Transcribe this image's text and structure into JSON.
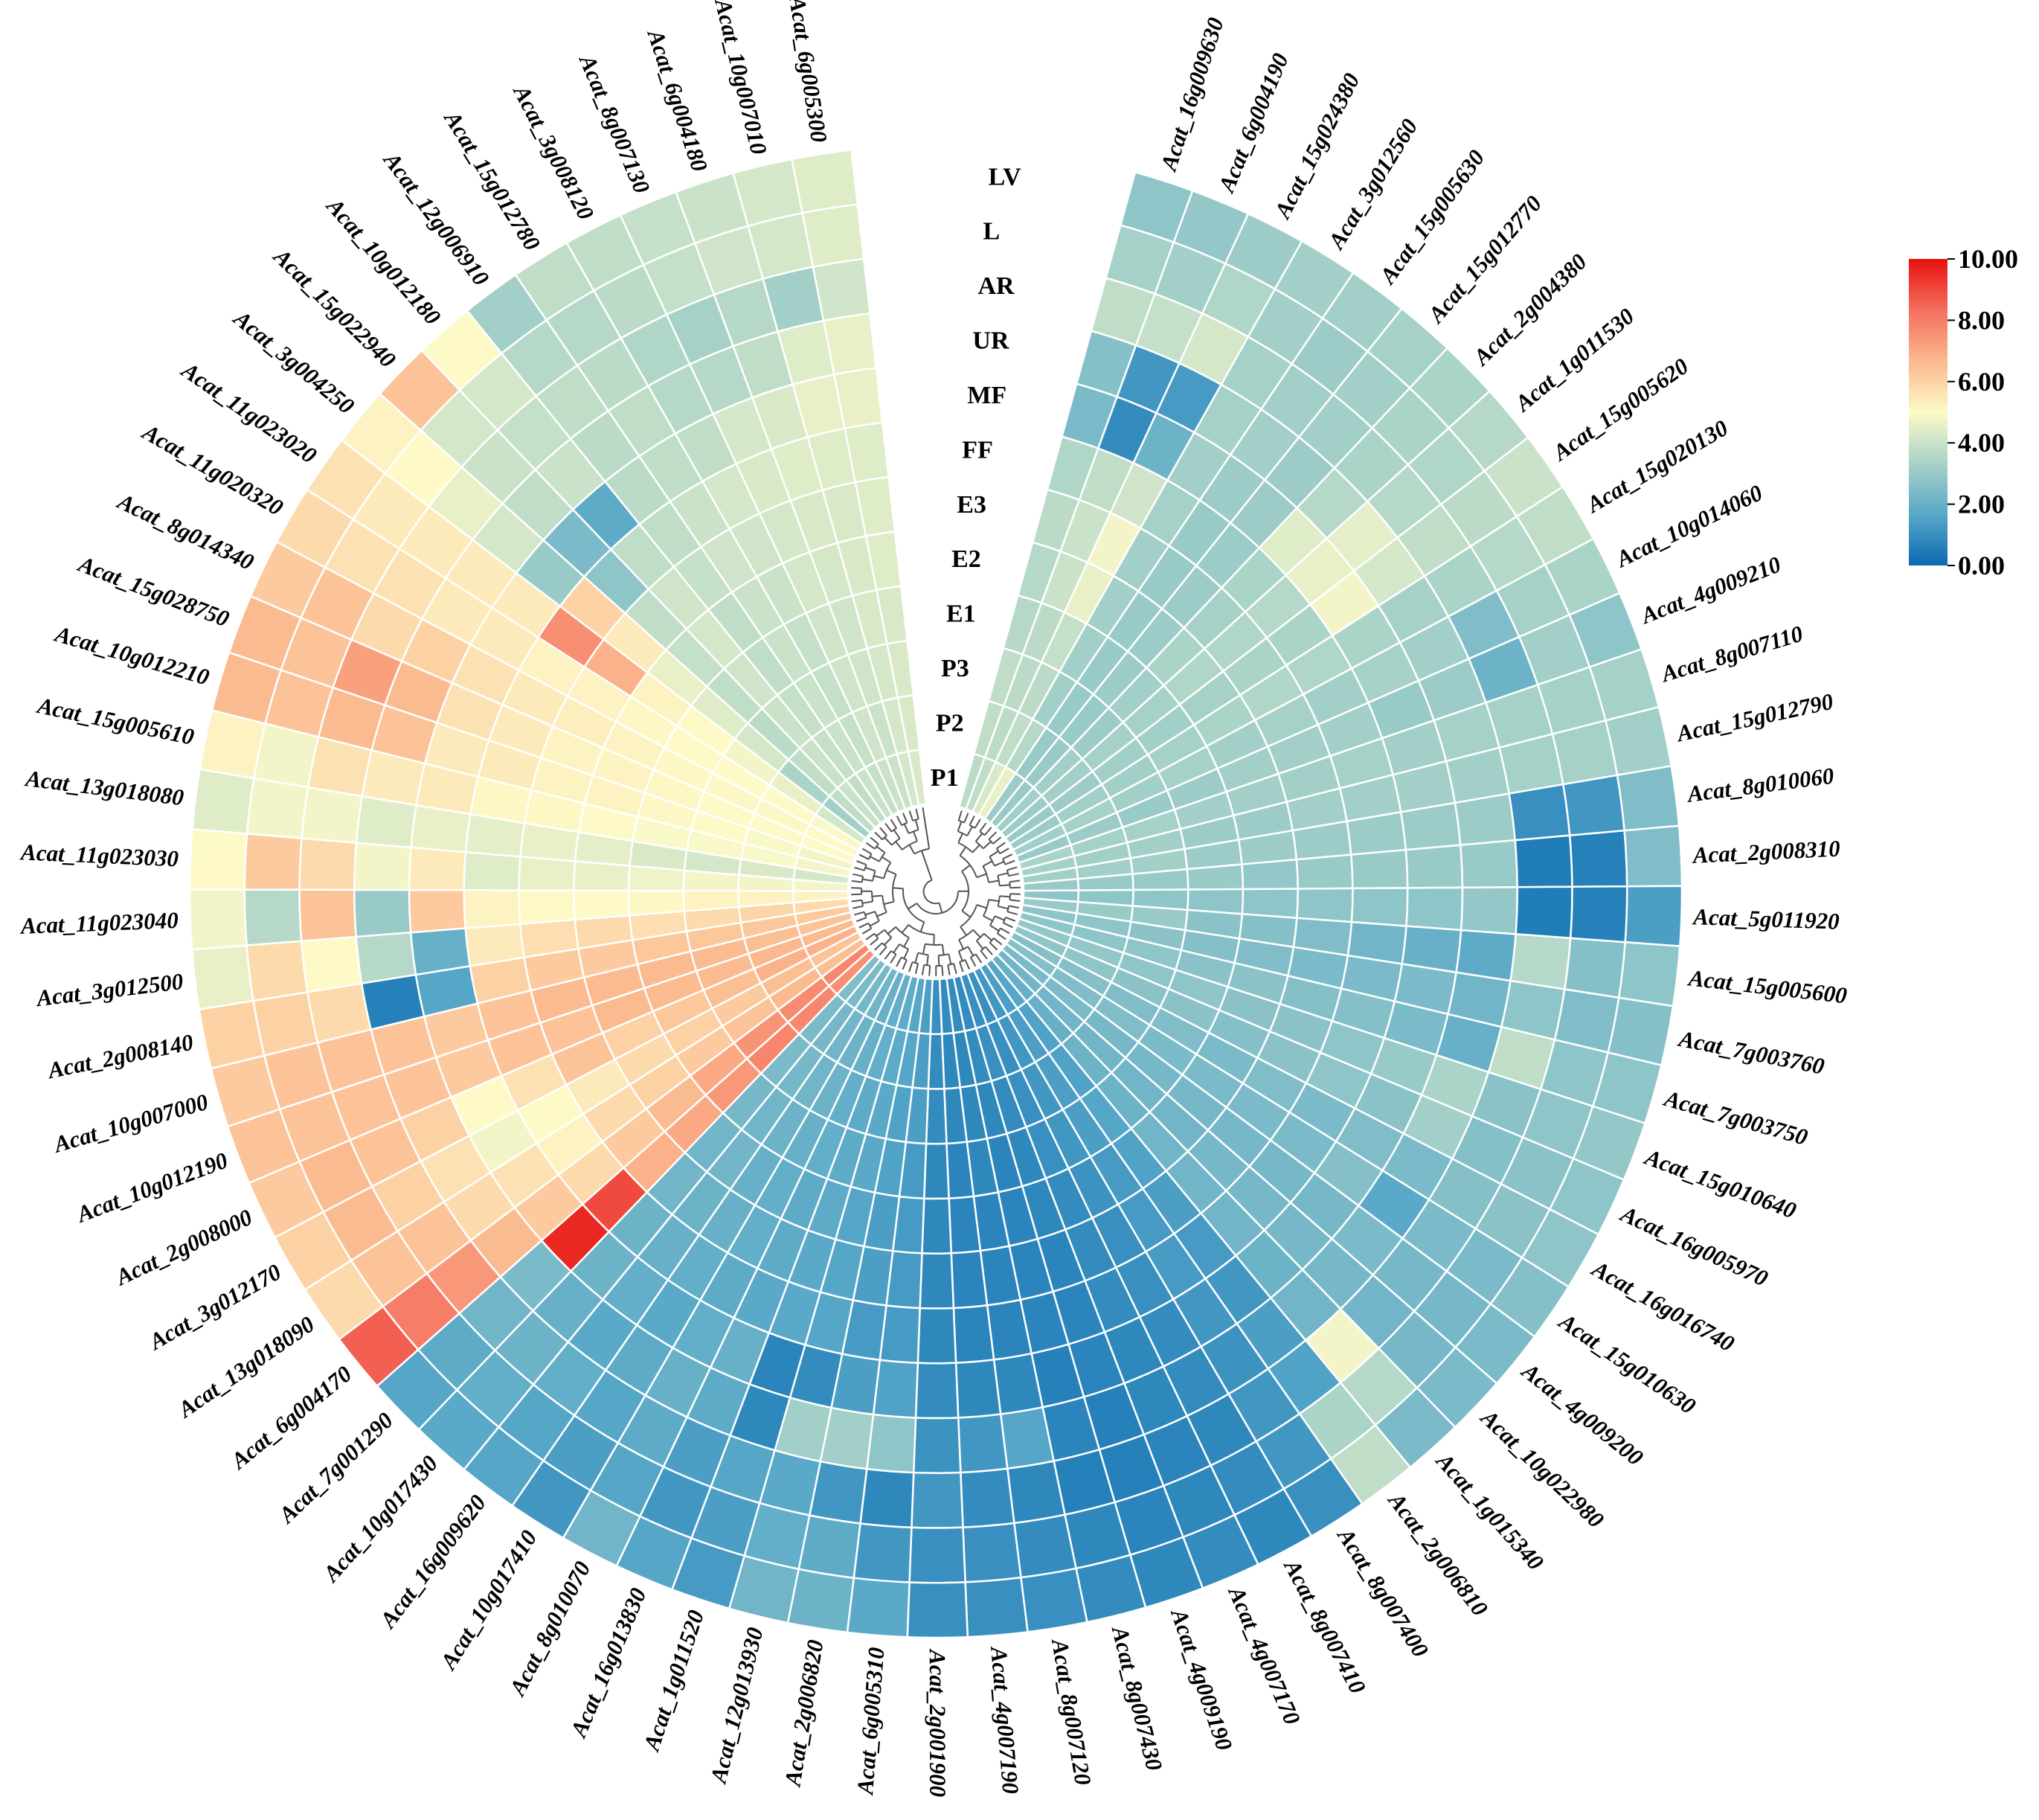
{
  "chart_data": {
    "type": "heatmap",
    "layout": "circular",
    "title": "",
    "rows": [
      "P1",
      "P2",
      "P3",
      "E1",
      "E2",
      "E3",
      "FF",
      "MF",
      "UR",
      "AR",
      "L",
      "LV"
    ],
    "genes": [
      {
        "name": "Acat_16g009630",
        "values": [
          3.7,
          3.8,
          3.8,
          3.6,
          3.6,
          3.7,
          3.5,
          2.4,
          2.6,
          3.8,
          3.3,
          2.8
        ]
      },
      {
        "name": "Acat_6g004190",
        "values": [
          3.8,
          3.7,
          3.7,
          3.7,
          4.0,
          4.0,
          3.8,
          0.9,
          1.2,
          3.9,
          3.2,
          2.9
        ]
      },
      {
        "name": "Acat_15g024380",
        "values": [
          4.3,
          3.8,
          3.7,
          3.9,
          4.6,
          4.8,
          4.1,
          2.1,
          1.3,
          4.2,
          3.5,
          3.1
        ]
      },
      {
        "name": "Acat_3g012560",
        "values": [
          4.6,
          3.6,
          3.2,
          3.2,
          3.2,
          3.2,
          3.3,
          3.2,
          3.3,
          3.3,
          3.2,
          3.2
        ]
      },
      {
        "name": "Acat_15g005630",
        "values": [
          3.1,
          3.0,
          3.0,
          3.0,
          3.0,
          3.0,
          3.0,
          3.1,
          3.2,
          3.2,
          3.1,
          3.2
        ]
      },
      {
        "name": "Acat_15g012770",
        "values": [
          3.0,
          3.0,
          3.0,
          3.1,
          3.1,
          3.1,
          3.1,
          3.1,
          3.1,
          3.2,
          3.2,
          3.3
        ]
      },
      {
        "name": "Acat_2g004380",
        "values": [
          3.2,
          3.2,
          3.1,
          3.2,
          3.4,
          3.3,
          3.4,
          4.4,
          3.6,
          3.4,
          3.4,
          3.4
        ]
      },
      {
        "name": "Acat_1g011530",
        "values": [
          3.1,
          3.2,
          3.3,
          3.3,
          3.5,
          3.5,
          3.6,
          4.6,
          4.5,
          3.6,
          3.5,
          3.6
        ]
      },
      {
        "name": "Acat_15g005620",
        "values": [
          3.0,
          3.1,
          3.2,
          3.2,
          3.3,
          3.4,
          3.4,
          4.8,
          4.2,
          3.8,
          3.7,
          4.0
        ]
      },
      {
        "name": "Acat_15g020130",
        "values": [
          3.1,
          3.2,
          3.2,
          3.3,
          3.4,
          3.5,
          3.5,
          3.4,
          3.3,
          3.4,
          3.6,
          3.8
        ]
      },
      {
        "name": "Acat_10g014060",
        "values": [
          3.2,
          3.3,
          3.2,
          3.3,
          3.2,
          3.3,
          3.2,
          3.3,
          3.2,
          2.5,
          3.3,
          3.4
        ]
      },
      {
        "name": "Acat_4g009210",
        "values": [
          3.0,
          3.1,
          3.0,
          3.1,
          3.2,
          3.2,
          3.2,
          3.0,
          3.1,
          2.1,
          3.2,
          2.8
        ]
      },
      {
        "name": "Acat_8g007110",
        "values": [
          3.4,
          3.3,
          3.3,
          3.2,
          3.2,
          3.2,
          3.3,
          3.2,
          3.3,
          3.3,
          3.3,
          3.3
        ]
      },
      {
        "name": "Acat_15g012790",
        "values": [
          3.3,
          3.2,
          3.2,
          3.1,
          3.1,
          3.2,
          3.2,
          3.2,
          3.2,
          3.3,
          3.3,
          3.2
        ]
      },
      {
        "name": "Acat_8g010060",
        "values": [
          3.2,
          3.2,
          3.2,
          3.1,
          3.1,
          3.1,
          3.1,
          3.1,
          3.1,
          1.0,
          1.2,
          2.5
        ]
      },
      {
        "name": "Acat_2g008310",
        "values": [
          3.0,
          3.0,
          3.0,
          3.0,
          2.9,
          3.0,
          3.0,
          3.0,
          3.0,
          0.5,
          0.6,
          2.5
        ]
      },
      {
        "name": "Acat_5g011920",
        "values": [
          2.8,
          2.8,
          2.8,
          2.8,
          2.8,
          2.8,
          2.8,
          2.8,
          2.9,
          0.5,
          0.6,
          1.4
        ]
      },
      {
        "name": "Acat_15g005600",
        "values": [
          3.0,
          3.0,
          3.0,
          2.7,
          2.6,
          2.5,
          2.2,
          2.0,
          1.8,
          3.6,
          2.6,
          2.8
        ]
      },
      {
        "name": "Acat_7g003760",
        "values": [
          2.8,
          2.8,
          2.7,
          2.6,
          2.5,
          2.4,
          2.4,
          2.4,
          2.2,
          2.8,
          2.5,
          2.6
        ]
      },
      {
        "name": "Acat_7g003750",
        "values": [
          2.8,
          2.8,
          2.8,
          2.7,
          2.7,
          2.6,
          2.6,
          2.4,
          2.0,
          3.8,
          2.8,
          2.8
        ]
      },
      {
        "name": "Acat_15g010640",
        "values": [
          2.9,
          2.9,
          2.8,
          2.8,
          2.7,
          2.7,
          2.8,
          3.0,
          3.4,
          2.7,
          2.8,
          2.9
        ]
      },
      {
        "name": "Acat_16g005970",
        "values": [
          2.8,
          2.8,
          2.7,
          2.7,
          2.6,
          2.7,
          2.8,
          2.7,
          3.2,
          2.6,
          2.7,
          2.8
        ]
      },
      {
        "name": "Acat_16g016740",
        "values": [
          2.6,
          2.6,
          2.5,
          2.5,
          2.4,
          2.5,
          2.4,
          2.5,
          2.4,
          2.6,
          2.7,
          2.8
        ]
      },
      {
        "name": "Acat_15g010630",
        "values": [
          2.6,
          2.5,
          2.5,
          2.4,
          2.4,
          2.4,
          2.4,
          2.6,
          1.7,
          2.4,
          2.4,
          2.6
        ]
      },
      {
        "name": "Acat_4g009200",
        "values": [
          2.4,
          2.4,
          2.3,
          2.3,
          2.3,
          2.3,
          2.3,
          2.3,
          2.4,
          2.3,
          2.3,
          2.4
        ]
      },
      {
        "name": "Acat_10g022980",
        "values": [
          2.2,
          2.2,
          2.2,
          2.2,
          2.2,
          2.3,
          2.3,
          2.3,
          2.3,
          2.2,
          2.3,
          2.4
        ]
      },
      {
        "name": "Acat_1g015340",
        "values": [
          2.0,
          2.0,
          2.1,
          2.1,
          2.2,
          2.2,
          2.2,
          2.1,
          2.2,
          4.8,
          3.6,
          2.4
        ]
      },
      {
        "name": "Acat_2g006810",
        "values": [
          1.6,
          1.5,
          1.5,
          1.6,
          1.5,
          1.4,
          1.3,
          1.2,
          1.4,
          1.5,
          3.4,
          3.8
        ]
      },
      {
        "name": "Acat_8g007400",
        "values": [
          1.4,
          1.4,
          1.4,
          1.4,
          1.3,
          1.3,
          1.3,
          1.2,
          1.1,
          1.2,
          1.2,
          1.0
        ]
      },
      {
        "name": "Acat_8g007410",
        "values": [
          1.2,
          1.2,
          1.2,
          1.2,
          1.1,
          1.0,
          1.0,
          0.9,
          0.9,
          0.8,
          0.9,
          0.8
        ]
      },
      {
        "name": "Acat_4g007170",
        "values": [
          1.0,
          1.0,
          1.0,
          1.0,
          0.9,
          0.9,
          0.9,
          0.8,
          0.8,
          0.7,
          0.8,
          0.9
        ]
      },
      {
        "name": "Acat_4g009190",
        "values": [
          1.0,
          1.0,
          0.9,
          0.8,
          0.8,
          0.7,
          0.7,
          0.7,
          0.6,
          0.6,
          0.7,
          0.8
        ]
      },
      {
        "name": "Acat_8g007430",
        "values": [
          0.9,
          0.9,
          0.8,
          0.7,
          0.7,
          0.7,
          0.7,
          0.6,
          0.7,
          0.6,
          0.8,
          0.9
        ]
      },
      {
        "name": "Acat_8g007120",
        "values": [
          0.9,
          0.8,
          0.8,
          0.8,
          0.7,
          0.7,
          0.7,
          0.8,
          1.6,
          0.8,
          0.9,
          1.0
        ]
      },
      {
        "name": "Acat_4g007190",
        "values": [
          0.9,
          0.8,
          0.8,
          0.7,
          0.7,
          0.7,
          0.7,
          0.8,
          1.2,
          0.9,
          1.0,
          1.0
        ]
      },
      {
        "name": "Acat_2g001900",
        "values": [
          1.0,
          0.9,
          0.9,
          0.8,
          0.8,
          0.8,
          0.8,
          0.9,
          1.1,
          1.2,
          1.0,
          1.0
        ]
      },
      {
        "name": "Acat_6g005310",
        "values": [
          1.4,
          1.4,
          1.4,
          1.3,
          1.3,
          1.3,
          1.3,
          1.5,
          2.8,
          0.8,
          1.2,
          1.7
        ]
      },
      {
        "name": "Acat_2g006820",
        "values": [
          1.6,
          1.6,
          1.5,
          1.5,
          1.4,
          1.4,
          1.3,
          1.4,
          3.2,
          1.2,
          1.8,
          2.1
        ]
      },
      {
        "name": "Acat_12g013930",
        "values": [
          1.8,
          1.8,
          1.7,
          1.7,
          1.6,
          1.6,
          1.6,
          0.9,
          3.2,
          1.7,
          1.9,
          2.2
        ]
      },
      {
        "name": "Acat_1g011520",
        "values": [
          1.9,
          1.9,
          1.8,
          1.8,
          1.8,
          1.7,
          1.7,
          0.7,
          0.8,
          1.6,
          1.4,
          1.3
        ]
      },
      {
        "name": "Acat_16g013830",
        "values": [
          2.0,
          2.0,
          1.9,
          1.9,
          1.8,
          1.8,
          1.7,
          2.0,
          1.8,
          1.4,
          1.2,
          1.6
        ]
      },
      {
        "name": "Acat_8g010070",
        "values": [
          2.2,
          2.1,
          2.1,
          2.0,
          1.9,
          1.9,
          1.8,
          1.9,
          2.0,
          1.8,
          1.6,
          2.2
        ]
      },
      {
        "name": "Acat_10g017410",
        "values": [
          2.3,
          2.2,
          2.2,
          2.1,
          2.0,
          2.0,
          1.9,
          1.7,
          1.8,
          1.6,
          1.4,
          1.2
        ]
      },
      {
        "name": "Acat_16g009620",
        "values": [
          2.4,
          2.3,
          2.3,
          2.2,
          2.2,
          2.1,
          2.0,
          1.9,
          1.7,
          1.9,
          1.6,
          1.6
        ]
      },
      {
        "name": "Acat_10g017430",
        "values": [
          2.5,
          2.4,
          2.4,
          2.3,
          2.2,
          2.2,
          2.1,
          2.1,
          2.0,
          2.1,
          1.9,
          1.7
        ]
      },
      {
        "name": "Acat_7g001290",
        "values": [
          7.6,
          7.8,
          7.8,
          7.4,
          7.0,
          6.8,
          9.0,
          9.6,
          2.4,
          2.2,
          1.8,
          1.6
        ]
      },
      {
        "name": "Acat_6g004170",
        "values": [
          7.8,
          7.7,
          7.5,
          7.0,
          6.6,
          6.2,
          5.8,
          6.2,
          6.6,
          7.4,
          8.0,
          8.6
        ]
      },
      {
        "name": "Acat_13g018090",
        "values": [
          6.5,
          6.6,
          6.4,
          6.2,
          6.0,
          5.8,
          5.2,
          5.6,
          5.8,
          6.4,
          6.4,
          5.8
        ]
      },
      {
        "name": "Acat_3g012170",
        "values": [
          6.4,
          6.5,
          6.2,
          6.0,
          5.8,
          5.4,
          5.0,
          4.8,
          5.6,
          6.0,
          6.6,
          6.0
        ]
      },
      {
        "name": "Acat_2g008000",
        "values": [
          6.8,
          6.8,
          6.5,
          6.3,
          6.0,
          6.4,
          5.6,
          5.0,
          6.0,
          6.4,
          6.6,
          6.2
        ]
      },
      {
        "name": "Acat_10g012190",
        "values": [
          6.6,
          6.7,
          6.6,
          6.6,
          6.6,
          6.4,
          6.4,
          6.2,
          6.4,
          6.4,
          6.4,
          6.4
        ]
      },
      {
        "name": "Acat_10g007000",
        "values": [
          6.4,
          6.5,
          6.6,
          6.6,
          6.6,
          6.6,
          6.4,
          6.2,
          6.4,
          6.4,
          6.4,
          6.2
        ]
      },
      {
        "name": "Acat_2g008140",
        "values": [
          6.2,
          6.3,
          6.3,
          6.3,
          6.2,
          6.2,
          6.0,
          1.6,
          0.6,
          5.8,
          6.0,
          6.0
        ]
      },
      {
        "name": "Acat_3g012500",
        "values": [
          5.8,
          5.9,
          5.8,
          5.7,
          5.8,
          5.7,
          5.4,
          2.0,
          3.6,
          5.0,
          5.8,
          4.6
        ]
      },
      {
        "name": "Acat_11g023040",
        "values": [
          5.2,
          5.2,
          5.2,
          5.1,
          5.0,
          5.0,
          5.2,
          6.2,
          3.0,
          6.4,
          3.6,
          4.8
        ]
      },
      {
        "name": "Acat_11g023030",
        "values": [
          4.8,
          4.8,
          4.8,
          4.7,
          4.6,
          4.6,
          4.4,
          5.4,
          4.8,
          5.8,
          6.2,
          5.0
        ]
      },
      {
        "name": "Acat_13g018080",
        "values": [
          4.2,
          4.3,
          4.2,
          4.3,
          4.5,
          4.6,
          4.5,
          4.6,
          4.4,
          4.8,
          4.8,
          4.4
        ]
      },
      {
        "name": "Acat_15g005610",
        "values": [
          4.8,
          4.9,
          4.9,
          4.9,
          5.0,
          5.1,
          5.1,
          5.4,
          5.4,
          5.6,
          4.8,
          5.2
        ]
      },
      {
        "name": "Acat_10g012210",
        "values": [
          4.8,
          4.9,
          5.0,
          5.1,
          5.2,
          5.2,
          5.4,
          5.4,
          6.4,
          6.6,
          6.4,
          6.6
        ]
      },
      {
        "name": "Acat_15g028750",
        "values": [
          5.0,
          5.0,
          5.0,
          5.1,
          5.2,
          5.2,
          5.4,
          5.6,
          6.6,
          7.2,
          6.4,
          6.6
        ]
      },
      {
        "name": "Acat_8g014340",
        "values": [
          5.0,
          5.1,
          5.1,
          5.1,
          5.2,
          5.3,
          5.4,
          5.6,
          6.0,
          5.8,
          6.4,
          6.2
        ]
      },
      {
        "name": "Acat_11g020320",
        "values": [
          4.9,
          5.0,
          5.0,
          5.0,
          5.1,
          5.2,
          5.2,
          5.4,
          5.4,
          5.6,
          5.6,
          5.8
        ]
      },
      {
        "name": "Acat_11g023020",
        "values": [
          4.2,
          4.6,
          4.8,
          5.0,
          5.2,
          6.8,
          7.6,
          5.4,
          5.4,
          5.4,
          5.4,
          5.6
        ]
      },
      {
        "name": "Acat_3g004250",
        "values": [
          3.2,
          3.4,
          4.2,
          4.4,
          4.6,
          5.4,
          6.0,
          3.0,
          4.2,
          4.6,
          5.0,
          5.2
        ]
      },
      {
        "name": "Acat_15g022940",
        "values": [
          3.8,
          3.8,
          3.7,
          3.8,
          3.9,
          3.8,
          2.8,
          2.4,
          3.8,
          4.0,
          4.2,
          6.4
        ]
      },
      {
        "name": "Acat_10g012180",
        "values": [
          4.0,
          4.0,
          4.0,
          4.1,
          4.2,
          4.1,
          3.8,
          1.8,
          4.0,
          3.9,
          4.2,
          5.0
        ]
      },
      {
        "name": "Acat_12g006910",
        "values": [
          3.8,
          3.9,
          3.9,
          3.8,
          3.8,
          3.9,
          3.8,
          3.7,
          3.7,
          3.8,
          3.6,
          3.2
        ]
      },
      {
        "name": "Acat_15g012780",
        "values": [
          4.0,
          4.0,
          4.0,
          4.0,
          4.0,
          4.1,
          4.0,
          3.8,
          3.8,
          3.7,
          3.6,
          3.8
        ]
      },
      {
        "name": "Acat_3g008120",
        "values": [
          3.9,
          3.9,
          3.9,
          3.9,
          4.0,
          4.1,
          4.2,
          3.8,
          3.6,
          3.5,
          3.7,
          3.8
        ]
      },
      {
        "name": "Acat_8g007130",
        "values": [
          4.0,
          4.1,
          4.1,
          4.1,
          4.2,
          4.2,
          4.3,
          4.2,
          3.6,
          3.3,
          3.9,
          3.9
        ]
      },
      {
        "name": "Acat_6g004180",
        "values": [
          4.0,
          4.0,
          4.1,
          4.1,
          4.2,
          4.3,
          4.4,
          4.3,
          3.8,
          3.6,
          4.1,
          4.0
        ]
      },
      {
        "name": "Acat_10g007010",
        "values": [
          4.2,
          4.2,
          4.2,
          4.3,
          4.3,
          4.3,
          4.4,
          4.6,
          4.4,
          3.2,
          4.2,
          4.2
        ]
      },
      {
        "name": "Acat_6g005300",
        "values": [
          4.3,
          4.3,
          4.3,
          4.3,
          4.4,
          4.4,
          4.4,
          4.6,
          4.6,
          4.1,
          4.4,
          4.4
        ]
      }
    ],
    "colorbar": {
      "min": 0,
      "max": 10,
      "ticks": [
        "10.00",
        "8.00",
        "6.00",
        "4.00",
        "2.00",
        "0.00"
      ],
      "colors": [
        "#0a6ab1",
        "#58a8c8",
        "#a8d2c8",
        "#fdfac8",
        "#fbb88e",
        "#f56f5e",
        "#e8100f"
      ]
    }
  }
}
